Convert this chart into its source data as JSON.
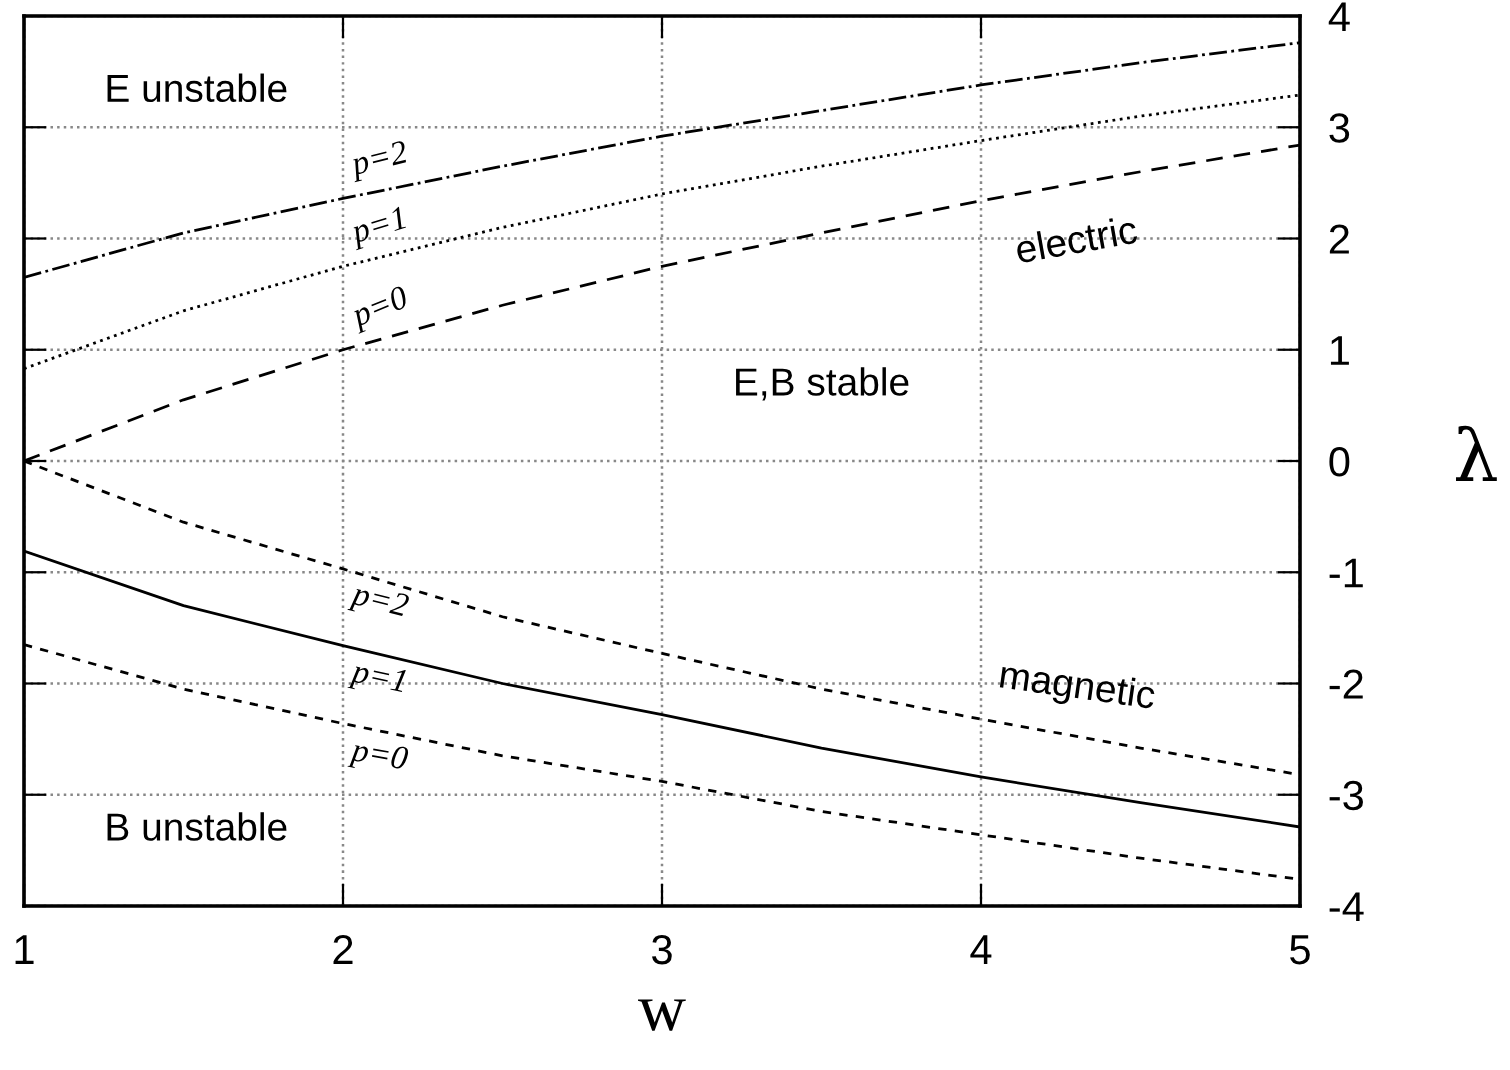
{
  "chart_data": {
    "type": "line",
    "xlabel": "w",
    "ylabel": "λ",
    "x": [
      1,
      1.5,
      2,
      2.5,
      3,
      3.5,
      4,
      4.5,
      5
    ],
    "xlim": [
      1,
      5
    ],
    "xticks": [
      1,
      2,
      3,
      4,
      5
    ],
    "ylim": [
      -4,
      4
    ],
    "yticks": [
      -4,
      -3,
      -2,
      -1,
      0,
      1,
      2,
      3,
      4
    ],
    "grid": true,
    "marker": "none",
    "series": [
      {
        "name": "p=2",
        "color": "#000000",
        "line_style": "dashdot",
        "values": [
          1.65,
          2.05,
          2.36,
          2.65,
          2.92,
          3.15,
          3.38,
          3.58,
          3.76
        ]
      },
      {
        "name": "p=1",
        "color": "#000000",
        "line_style": "dotted",
        "values": [
          0.83,
          1.35,
          1.75,
          2.1,
          2.4,
          2.65,
          2.88,
          3.1,
          3.29
        ]
      },
      {
        "name": "p=0",
        "color": "#000000",
        "line_style": "dashed",
        "values": [
          0,
          0.55,
          1.0,
          1.4,
          1.75,
          2.05,
          2.34,
          2.6,
          2.84
        ]
      },
      {
        "name": "p=2",
        "color": "#000000",
        "line_style": "dashed",
        "values": [
          0,
          -0.55,
          -0.97,
          -1.4,
          -1.73,
          -2.05,
          -2.32,
          -2.58,
          -2.82
        ]
      },
      {
        "name": "p=1",
        "color": "#000000",
        "line_style": "solid",
        "values": [
          -0.81,
          -1.3,
          -1.66,
          -2.0,
          -2.28,
          -2.58,
          -2.84,
          -3.07,
          -3.29
        ]
      },
      {
        "name": "p=0",
        "color": "#000000",
        "line_style": "dashed",
        "values": [
          -1.65,
          -2.05,
          -2.36,
          -2.65,
          -2.88,
          -3.15,
          -3.36,
          -3.57,
          -3.76
        ]
      }
    ],
    "annotations": [
      "E unstable",
      "B unstable",
      "E,B stable",
      "electric",
      "magnetic"
    ]
  }
}
